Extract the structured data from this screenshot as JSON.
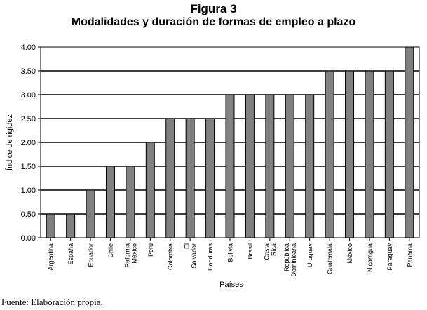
{
  "figure": {
    "title": "Figura 3",
    "subtitle": "Modalidades y duración de formas de empleo a plazo",
    "source": "Fuente: Elaboración propia."
  },
  "colors": {
    "bar_fill": "#808080",
    "bar_stroke": "#000000",
    "plot_background": "#ffffff",
    "gridline": "#000000"
  },
  "chart_data": {
    "type": "bar",
    "xlabel": "Países",
    "ylabel": "Índice de rigidez",
    "ylim": [
      0,
      4
    ],
    "yticks": [
      "0.00",
      "0.50",
      "1.00",
      "1.50",
      "2.00",
      "2.50",
      "3.00",
      "3.50",
      "4.00"
    ],
    "grid": true,
    "categories": [
      "Argentina",
      "España",
      "Ecuador",
      "Chile",
      "Reforma México",
      "Perú",
      "Colombia",
      "El Salvador",
      "Honduras",
      "Bolivia",
      "Brasil",
      "Costa Rica",
      "República Dominicana",
      "Uruguay",
      "Guatemala",
      "México",
      "Nicaragua",
      "Paraguay",
      "Panamá"
    ],
    "values": [
      0.5,
      0.5,
      1.0,
      1.5,
      1.5,
      2.0,
      2.5,
      2.5,
      2.5,
      3.0,
      3.0,
      3.0,
      3.0,
      3.0,
      3.5,
      3.5,
      3.5,
      3.5,
      4.0
    ]
  }
}
